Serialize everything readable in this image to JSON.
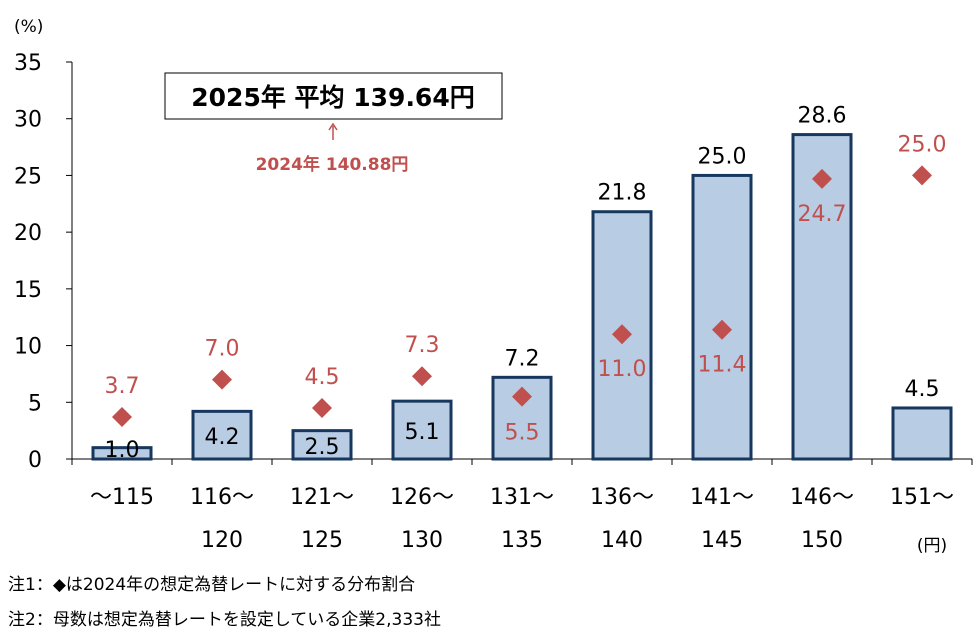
{
  "chart_data": {
    "type": "bar",
    "y_unit": "(%)",
    "x_unit": "(円)",
    "ylim": [
      0,
      35
    ],
    "yticks": [
      0,
      5,
      10,
      15,
      20,
      25,
      30,
      35
    ],
    "grid": false,
    "categories": [
      [
        "～115"
      ],
      [
        "116～",
        "120"
      ],
      [
        "121～",
        "125"
      ],
      [
        "126～",
        "130"
      ],
      [
        "131～",
        "135"
      ],
      [
        "136～",
        "140"
      ],
      [
        "141～",
        "145"
      ],
      [
        "146～",
        "150"
      ],
      [
        "151～"
      ]
    ],
    "series": [
      {
        "values": [
          1.0,
          4.2,
          2.5,
          5.1,
          7.2,
          21.8,
          25.0,
          28.6,
          4.5
        ],
        "color": "#b8cce4",
        "edge": "#17375e"
      },
      {
        "marker": "diamond",
        "values": [
          3.7,
          7.0,
          4.5,
          7.3,
          5.5,
          11.0,
          11.4,
          24.7,
          25.0
        ],
        "color": "#c0504d"
      }
    ],
    "bar_labels": [
      "1.0",
      "4.2",
      "2.5",
      "5.1",
      "7.2",
      "21.8",
      "25.0",
      "28.6",
      "4.5"
    ],
    "marker_labels": [
      "3.7",
      "7.0",
      "4.5",
      "7.3",
      "5.5",
      "11.0",
      "11.4",
      "24.7",
      "25.0"
    ],
    "annotation_box": "2025年 平均 139.64円",
    "annotation_prev": "2024年 140.88円"
  },
  "notes": [
    "注1：◆は2024年の想定為替レートに対する分布割合",
    "注2：母数は想定為替レートを設定している企業2,333社"
  ]
}
